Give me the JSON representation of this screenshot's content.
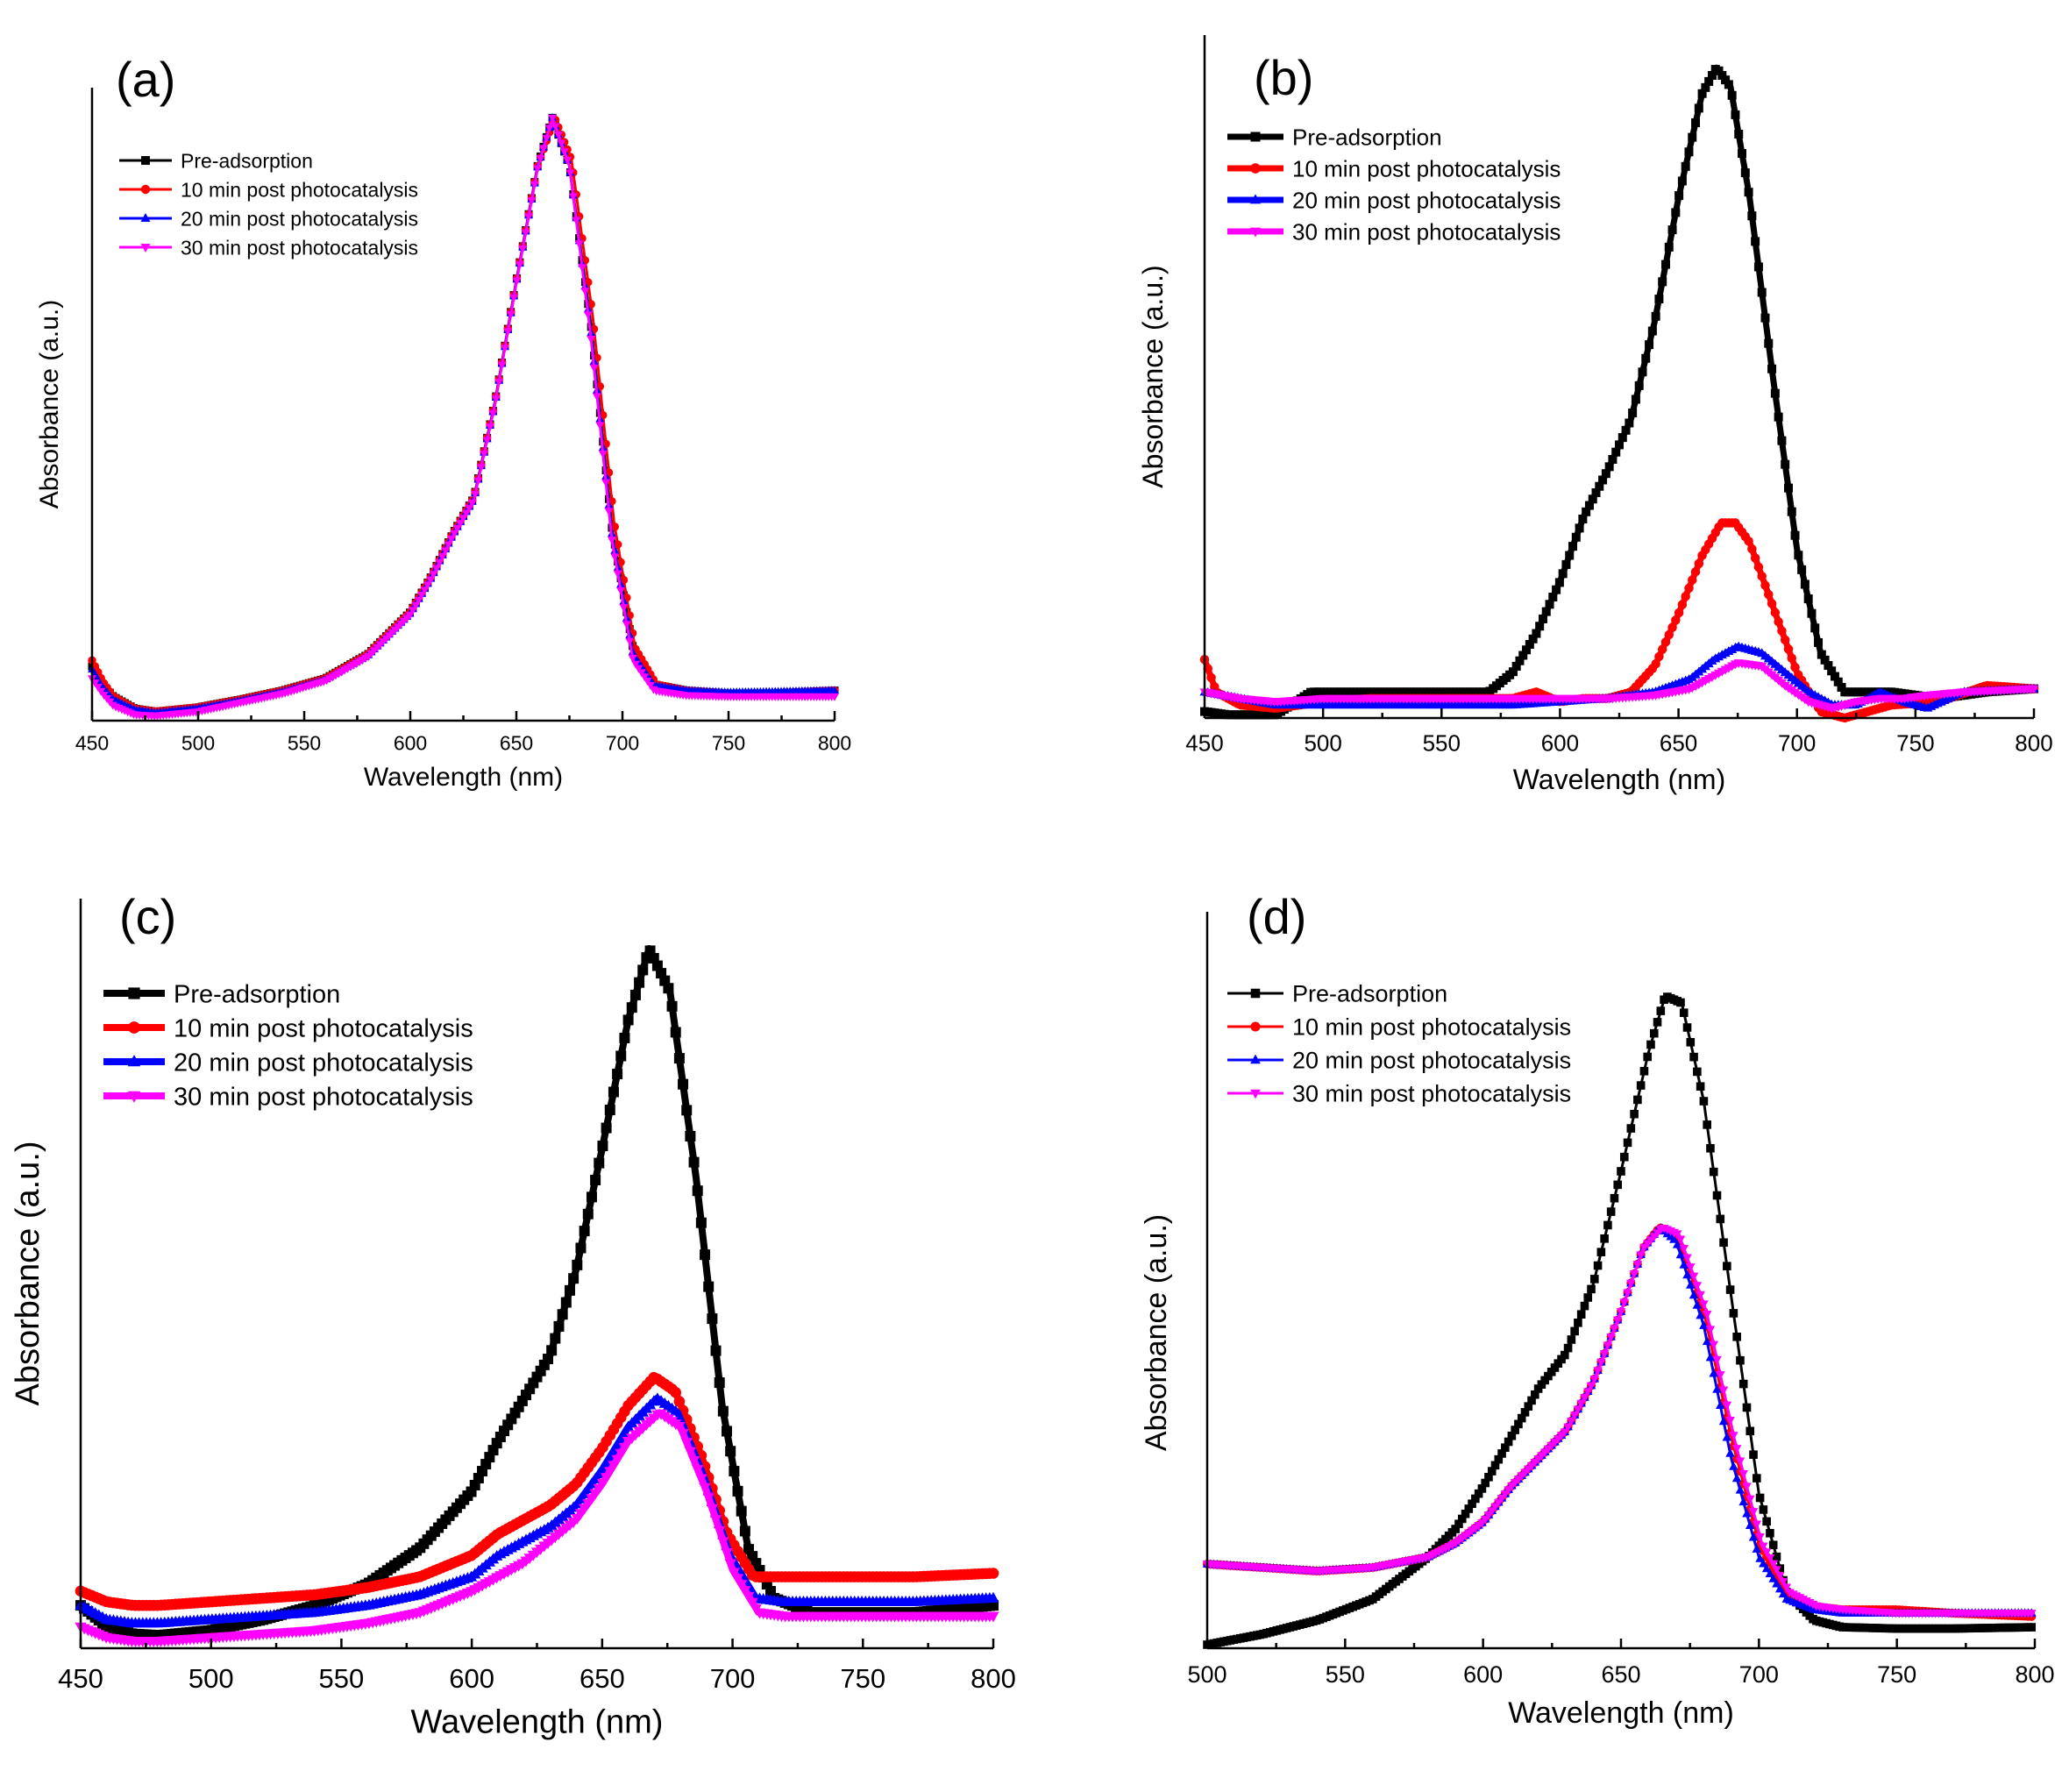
{
  "chart_data": [
    {
      "type": "line",
      "panel_label": "(a)",
      "xlabel": "Wavelength (nm)",
      "ylabel": "Absorbance (a.u.)",
      "xlim": [
        450,
        800
      ],
      "ylim": [
        0,
        1.05
      ],
      "xticks": [
        450,
        500,
        550,
        600,
        650,
        700,
        750,
        800
      ],
      "xtick_labels": [
        "450",
        "500",
        "550",
        "600",
        "650",
        "700",
        "750",
        "800"
      ],
      "legend_position": "top-left",
      "series": [
        {
          "name": "Pre-adsorption",
          "color": "#000000",
          "marker": "square",
          "x": [
            450,
            455,
            460,
            470,
            480,
            500,
            520,
            540,
            560,
            580,
            600,
            610,
            620,
            630,
            640,
            650,
            660,
            667,
            675,
            685,
            695,
            705,
            715,
            730,
            750,
            770,
            800
          ],
          "y": [
            0.09,
            0.06,
            0.04,
            0.02,
            0.015,
            0.022,
            0.035,
            0.05,
            0.07,
            0.11,
            0.18,
            0.24,
            0.31,
            0.37,
            0.53,
            0.73,
            0.92,
            1.0,
            0.92,
            0.66,
            0.32,
            0.12,
            0.06,
            0.05,
            0.045,
            0.045,
            0.05
          ]
        },
        {
          "name": "10 min post photocatalysis",
          "color": "#ff0000",
          "marker": "circle",
          "x": [
            450,
            455,
            460,
            470,
            480,
            500,
            520,
            540,
            560,
            580,
            600,
            610,
            620,
            630,
            640,
            650,
            660,
            668,
            676,
            686,
            696,
            706,
            716,
            730,
            750,
            770,
            800
          ],
          "y": [
            0.1,
            0.065,
            0.04,
            0.02,
            0.015,
            0.022,
            0.035,
            0.05,
            0.07,
            0.11,
            0.18,
            0.24,
            0.31,
            0.37,
            0.53,
            0.73,
            0.92,
            1.0,
            0.93,
            0.67,
            0.33,
            0.12,
            0.06,
            0.05,
            0.045,
            0.045,
            0.05
          ]
        },
        {
          "name": "20 min post photocatalysis",
          "color": "#0000ff",
          "marker": "triangle-up",
          "x": [
            450,
            455,
            460,
            470,
            480,
            500,
            520,
            540,
            560,
            580,
            600,
            610,
            620,
            630,
            640,
            650,
            660,
            667,
            675,
            685,
            695,
            705,
            715,
            730,
            750,
            770,
            800
          ],
          "y": [
            0.085,
            0.055,
            0.035,
            0.018,
            0.013,
            0.02,
            0.033,
            0.048,
            0.068,
            0.108,
            0.178,
            0.238,
            0.308,
            0.368,
            0.528,
            0.728,
            0.918,
            1.0,
            0.92,
            0.65,
            0.31,
            0.11,
            0.058,
            0.05,
            0.047,
            0.048,
            0.05
          ]
        },
        {
          "name": "30 min post photocatalysis",
          "color": "#ff00ff",
          "marker": "triangle-down",
          "x": [
            450,
            455,
            460,
            470,
            480,
            500,
            520,
            540,
            560,
            580,
            600,
            610,
            620,
            630,
            640,
            650,
            660,
            667,
            675,
            685,
            695,
            705,
            715,
            730,
            750,
            770,
            800
          ],
          "y": [
            0.07,
            0.045,
            0.025,
            0.01,
            0.008,
            0.015,
            0.03,
            0.045,
            0.066,
            0.106,
            0.176,
            0.236,
            0.306,
            0.366,
            0.526,
            0.726,
            0.916,
            1.0,
            0.92,
            0.64,
            0.3,
            0.1,
            0.05,
            0.042,
            0.04,
            0.04,
            0.04
          ]
        }
      ]
    },
    {
      "type": "line",
      "panel_label": "(b)",
      "xlabel": "Wavelength (nm)",
      "ylabel": "Absorbance (a.u.)",
      "xlim": [
        450,
        800
      ],
      "ylim": [
        0,
        1.05
      ],
      "xticks": [
        450,
        500,
        550,
        600,
        650,
        700,
        750,
        800
      ],
      "xtick_labels": [
        "450",
        "500",
        "550",
        "600",
        "650",
        "700",
        "750",
        "800"
      ],
      "legend_position": "top-left",
      "series": [
        {
          "name": "Pre-adsorption",
          "color": "#000000",
          "marker": "square",
          "x": [
            450,
            460,
            480,
            495,
            510,
            530,
            550,
            570,
            580,
            590,
            600,
            610,
            620,
            630,
            640,
            650,
            660,
            666,
            672,
            680,
            690,
            700,
            710,
            720,
            740,
            760,
            780,
            800
          ],
          "y": [
            0.01,
            0.005,
            0.005,
            0.04,
            0.04,
            0.04,
            0.04,
            0.04,
            0.07,
            0.13,
            0.21,
            0.31,
            0.38,
            0.46,
            0.61,
            0.8,
            0.96,
            1.0,
            0.97,
            0.8,
            0.52,
            0.26,
            0.1,
            0.04,
            0.04,
            0.03,
            0.04,
            0.045
          ]
        },
        {
          "name": "10 min post photocatalysis",
          "color": "#ff0000",
          "marker": "circle",
          "x": [
            450,
            455,
            465,
            480,
            500,
            520,
            540,
            560,
            580,
            590,
            600,
            610,
            620,
            630,
            640,
            650,
            660,
            668,
            674,
            680,
            690,
            700,
            710,
            720,
            740,
            760,
            780,
            800
          ],
          "y": [
            0.09,
            0.04,
            0.02,
            0.015,
            0.025,
            0.03,
            0.03,
            0.03,
            0.03,
            0.04,
            0.025,
            0.03,
            0.03,
            0.04,
            0.08,
            0.16,
            0.25,
            0.3,
            0.3,
            0.27,
            0.17,
            0.07,
            0.01,
            0.0,
            0.02,
            0.025,
            0.05,
            0.045
          ]
        },
        {
          "name": "20 min post photocatalysis",
          "color": "#0000ff",
          "marker": "triangle-up",
          "x": [
            450,
            465,
            480,
            500,
            520,
            540,
            560,
            580,
            600,
            620,
            640,
            655,
            665,
            675,
            685,
            695,
            705,
            715,
            725,
            735,
            745,
            755,
            770,
            800
          ],
          "y": [
            0.04,
            0.03,
            0.02,
            0.02,
            0.02,
            0.02,
            0.02,
            0.02,
            0.025,
            0.03,
            0.04,
            0.06,
            0.09,
            0.11,
            0.1,
            0.07,
            0.04,
            0.02,
            0.02,
            0.04,
            0.025,
            0.015,
            0.04,
            0.045
          ]
        },
        {
          "name": "30 min post photocatalysis",
          "color": "#ff00ff",
          "marker": "triangle-down",
          "x": [
            450,
            465,
            480,
            500,
            520,
            540,
            560,
            580,
            600,
            620,
            640,
            655,
            665,
            675,
            685,
            695,
            705,
            715,
            725,
            735,
            745,
            755,
            770,
            800
          ],
          "y": [
            0.04,
            0.03,
            0.025,
            0.03,
            0.03,
            0.03,
            0.03,
            0.03,
            0.03,
            0.03,
            0.035,
            0.045,
            0.065,
            0.085,
            0.08,
            0.05,
            0.025,
            0.015,
            0.025,
            0.03,
            0.03,
            0.035,
            0.04,
            0.045
          ]
        }
      ]
    },
    {
      "type": "line",
      "panel_label": "(c)",
      "xlabel": "Wavelength (nm)",
      "ylabel": "Absorbance (a.u.)",
      "xlim": [
        450,
        800
      ],
      "ylim": [
        0,
        1.05
      ],
      "xticks": [
        450,
        500,
        550,
        600,
        650,
        700,
        750,
        800
      ],
      "xtick_labels": [
        "450",
        "500",
        "550",
        "600",
        "650",
        "700",
        "750",
        "800"
      ],
      "legend_position": "top-left",
      "series": [
        {
          "name": "Pre-adsorption",
          "color": "#000000",
          "marker": "square",
          "x": [
            450,
            460,
            470,
            480,
            500,
            520,
            540,
            560,
            580,
            600,
            610,
            620,
            630,
            640,
            650,
            660,
            668,
            676,
            686,
            696,
            706,
            716,
            730,
            750,
            770,
            800
          ],
          "y": [
            0.06,
            0.03,
            0.02,
            0.018,
            0.025,
            0.04,
            0.06,
            0.09,
            0.14,
            0.22,
            0.29,
            0.35,
            0.41,
            0.53,
            0.7,
            0.88,
            0.98,
            0.92,
            0.66,
            0.34,
            0.14,
            0.07,
            0.05,
            0.05,
            0.05,
            0.06
          ]
        },
        {
          "name": "10 min post photocatalysis",
          "color": "#ff0000",
          "marker": "circle",
          "x": [
            450,
            460,
            470,
            480,
            500,
            520,
            540,
            560,
            580,
            600,
            610,
            620,
            630,
            640,
            650,
            660,
            670,
            678,
            688,
            698,
            708,
            718,
            730,
            750,
            770,
            800
          ],
          "y": [
            0.08,
            0.065,
            0.06,
            0.06,
            0.065,
            0.07,
            0.075,
            0.085,
            0.1,
            0.13,
            0.16,
            0.18,
            0.2,
            0.23,
            0.28,
            0.34,
            0.38,
            0.36,
            0.27,
            0.16,
            0.1,
            0.1,
            0.1,
            0.1,
            0.1,
            0.105
          ]
        },
        {
          "name": "20 min post photocatalysis",
          "color": "#0000ff",
          "marker": "triangle-up",
          "x": [
            450,
            460,
            470,
            480,
            500,
            520,
            540,
            560,
            580,
            600,
            610,
            620,
            630,
            640,
            650,
            660,
            671,
            679,
            689,
            699,
            709,
            719,
            730,
            750,
            770,
            800
          ],
          "y": [
            0.06,
            0.04,
            0.035,
            0.035,
            0.04,
            0.045,
            0.05,
            0.06,
            0.075,
            0.1,
            0.13,
            0.15,
            0.17,
            0.2,
            0.25,
            0.31,
            0.35,
            0.33,
            0.24,
            0.13,
            0.07,
            0.065,
            0.065,
            0.065,
            0.065,
            0.07
          ]
        },
        {
          "name": "30 min post photocatalysis",
          "color": "#ff00ff",
          "marker": "triangle-down",
          "x": [
            450,
            460,
            470,
            480,
            500,
            520,
            540,
            560,
            580,
            600,
            610,
            620,
            630,
            640,
            650,
            660,
            672,
            680,
            690,
            700,
            710,
            720,
            730,
            750,
            770,
            800
          ],
          "y": [
            0.03,
            0.015,
            0.01,
            0.01,
            0.015,
            0.02,
            0.025,
            0.035,
            0.05,
            0.08,
            0.1,
            0.12,
            0.15,
            0.18,
            0.23,
            0.29,
            0.33,
            0.31,
            0.22,
            0.11,
            0.05,
            0.045,
            0.045,
            0.045,
            0.045,
            0.045
          ]
        }
      ]
    },
    {
      "type": "line",
      "panel_label": "(d)",
      "xlabel": "Wavelength (nm)",
      "ylabel": "Absorbance (a.u.)",
      "xlim": [
        500,
        800
      ],
      "ylim": [
        0,
        1.05
      ],
      "xticks": [
        500,
        550,
        600,
        650,
        700,
        750,
        800
      ],
      "xtick_labels": [
        "500",
        "550",
        "600",
        "650",
        "700",
        "750",
        "800"
      ],
      "legend_position": "top-left",
      "series": [
        {
          "name": "Pre-adsorption",
          "color": "#000000",
          "marker": "square",
          "x": [
            500,
            520,
            540,
            560,
            580,
            590,
            600,
            610,
            620,
            630,
            640,
            650,
            660,
            666,
            672,
            680,
            690,
            700,
            710,
            720,
            730,
            750,
            770,
            800
          ],
          "y": [
            0.005,
            0.02,
            0.04,
            0.07,
            0.13,
            0.17,
            0.23,
            0.3,
            0.37,
            0.42,
            0.52,
            0.68,
            0.85,
            0.93,
            0.92,
            0.78,
            0.5,
            0.22,
            0.08,
            0.04,
            0.03,
            0.028,
            0.028,
            0.03
          ]
        },
        {
          "name": "10 min post photocatalysis",
          "color": "#ff0000",
          "marker": "circle",
          "x": [
            500,
            520,
            540,
            560,
            580,
            590,
            600,
            610,
            620,
            630,
            640,
            650,
            658,
            664,
            670,
            680,
            690,
            700,
            710,
            720,
            730,
            750,
            770,
            800
          ],
          "y": [
            0.12,
            0.115,
            0.11,
            0.115,
            0.13,
            0.15,
            0.18,
            0.23,
            0.27,
            0.31,
            0.38,
            0.48,
            0.57,
            0.6,
            0.59,
            0.48,
            0.3,
            0.15,
            0.08,
            0.06,
            0.055,
            0.055,
            0.05,
            0.045
          ]
        },
        {
          "name": "20 min post photocatalysis",
          "color": "#0000ff",
          "marker": "triangle-up",
          "x": [
            500,
            520,
            540,
            560,
            580,
            590,
            600,
            610,
            620,
            630,
            640,
            650,
            658,
            664,
            670,
            680,
            690,
            700,
            710,
            720,
            730,
            750,
            770,
            800
          ],
          "y": [
            0.12,
            0.115,
            0.11,
            0.115,
            0.13,
            0.15,
            0.18,
            0.23,
            0.27,
            0.31,
            0.38,
            0.48,
            0.57,
            0.6,
            0.58,
            0.46,
            0.27,
            0.13,
            0.07,
            0.055,
            0.05,
            0.05,
            0.05,
            0.05
          ]
        },
        {
          "name": "30 min post photocatalysis",
          "color": "#ff00ff",
          "marker": "triangle-down",
          "x": [
            500,
            520,
            540,
            560,
            580,
            590,
            600,
            610,
            620,
            630,
            640,
            650,
            658,
            665,
            671,
            681,
            691,
            701,
            711,
            721,
            731,
            750,
            770,
            800
          ],
          "y": [
            0.12,
            0.115,
            0.11,
            0.115,
            0.13,
            0.15,
            0.18,
            0.23,
            0.27,
            0.31,
            0.38,
            0.48,
            0.57,
            0.6,
            0.59,
            0.48,
            0.3,
            0.15,
            0.08,
            0.06,
            0.055,
            0.05,
            0.05,
            0.05
          ]
        }
      ]
    }
  ]
}
